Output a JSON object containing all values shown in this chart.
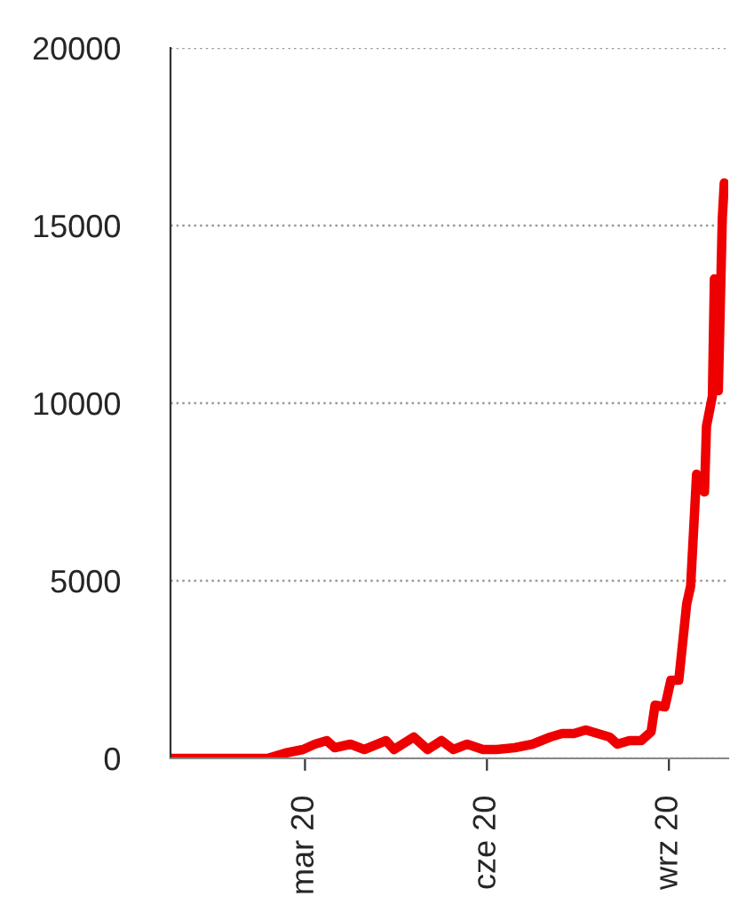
{
  "chart_data": {
    "type": "line",
    "x": [
      "2019-12-24",
      "2020-02-11",
      "2020-02-20",
      "2020-02-29",
      "2020-03-06",
      "2020-03-12",
      "2020-03-16",
      "2020-03-24",
      "2020-03-31",
      "2020-04-11",
      "2020-04-15",
      "2020-04-25",
      "2020-05-02",
      "2020-05-09",
      "2020-05-15",
      "2020-05-22",
      "2020-05-30",
      "2020-06-06",
      "2020-06-15",
      "2020-06-24",
      "2020-07-03",
      "2020-07-09",
      "2020-07-15",
      "2020-07-21",
      "2020-07-27",
      "2020-08-02",
      "2020-08-06",
      "2020-08-12",
      "2020-08-18",
      "2020-08-23",
      "2020-08-25",
      "2020-08-30",
      "2020-09-02",
      "2020-09-06",
      "2020-09-10",
      "2020-09-12",
      "2020-09-15",
      "2020-09-19",
      "2020-09-20",
      "2020-09-23",
      "2020-09-24",
      "2020-09-26",
      "2020-09-28",
      "2020-09-29"
    ],
    "series": [
      {
        "color": "#ee0000",
        "values": [
          0,
          0,
          150,
          250,
          400,
          500,
          300,
          400,
          250,
          500,
          250,
          600,
          250,
          500,
          250,
          400,
          250,
          250,
          300,
          400,
          600,
          700,
          700,
          800,
          700,
          600,
          400,
          500,
          500,
          750,
          1500,
          1450,
          2200,
          2200,
          4350,
          4850,
          8000,
          7500,
          9350,
          10200,
          13500,
          10350,
          15200,
          16200
        ]
      }
    ],
    "xlim": [
      "2019-12-24",
      "2020-10-01"
    ],
    "xticks": [
      {
        "value": "2020-03-01",
        "label": "mar 20"
      },
      {
        "value": "2020-06-01",
        "label": "cze 20"
      },
      {
        "value": "2020-09-01",
        "label": "wrz 20"
      }
    ],
    "ylim": [
      0,
      20000
    ],
    "yticks": [
      0,
      5000,
      10000,
      15000,
      20000
    ],
    "grid": "y",
    "legend": false,
    "line_style": "solid",
    "marker": "none"
  }
}
